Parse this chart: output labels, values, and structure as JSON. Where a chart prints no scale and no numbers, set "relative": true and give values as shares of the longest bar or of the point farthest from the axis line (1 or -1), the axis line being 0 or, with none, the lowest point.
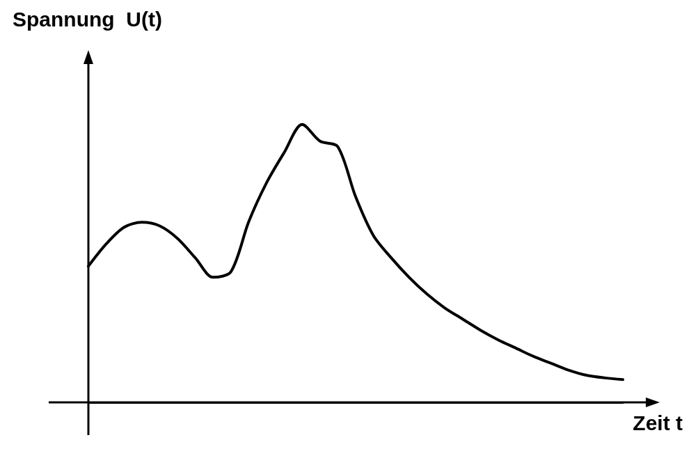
{
  "chart_data": {
    "type": "line",
    "relative": true,
    "xlabel": "Zeit t",
    "ylabel": "Spannung  U(t)",
    "categories": [
      null,
      null,
      null,
      null,
      null,
      null,
      null,
      null,
      null,
      null,
      null,
      null,
      null,
      null,
      null,
      null,
      null,
      null,
      null,
      null,
      null,
      null,
      null,
      null,
      null,
      null,
      null,
      null,
      null,
      null,
      null
    ],
    "series": [
      {
        "color": "#000000",
        "values": [
          0.49,
          0.57,
          0.63,
          0.648,
          0.635,
          0.59,
          0.52,
          0.45,
          0.47,
          0.65,
          0.79,
          0.9,
          1,
          0.94,
          0.92,
          0.74,
          0.6,
          0.52,
          0.45,
          0.39,
          0.34,
          0.3,
          0.26,
          0.225,
          0.195,
          0.165,
          0.14,
          0.115,
          0.097,
          0.088,
          0.082
        ]
      }
    ],
    "grid": false,
    "marker": "none",
    "line_style": "solid"
  }
}
